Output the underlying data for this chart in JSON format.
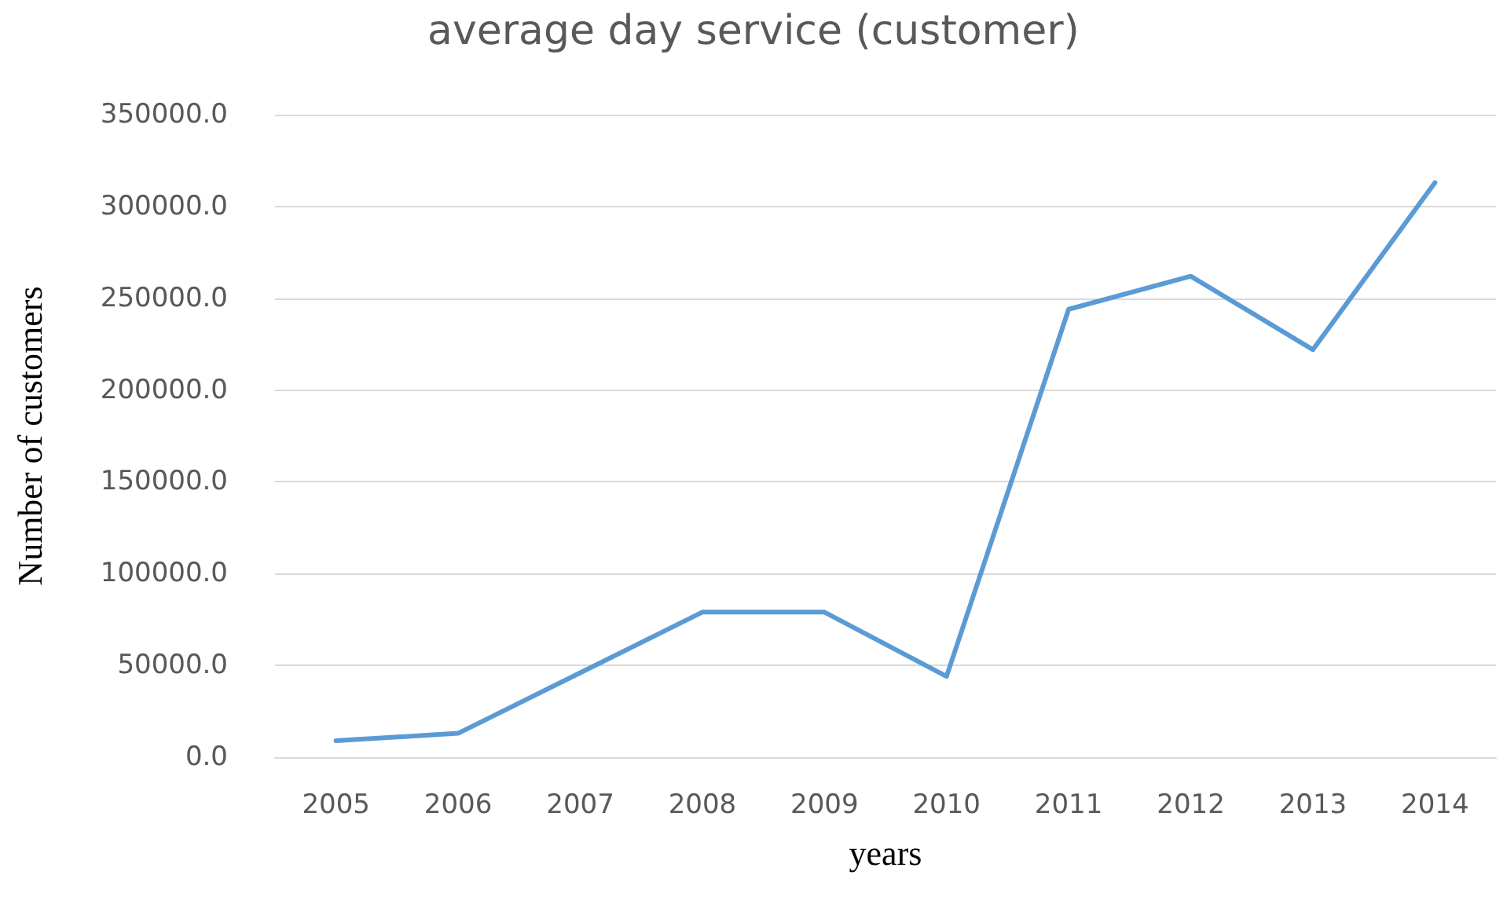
{
  "chart_data": {
    "type": "line",
    "title": "average day service (customer)",
    "xlabel": "years",
    "ylabel": "Number of customers",
    "categories": [
      "2005",
      "2006",
      "2007",
      "2008",
      "2009",
      "2010",
      "2011",
      "2012",
      "2013",
      "2014"
    ],
    "series": [
      {
        "color": "#5b9bd5",
        "values": [
          9000,
          13000,
          46000,
          79000,
          79000,
          44000,
          244000,
          262000,
          222000,
          313000
        ]
      }
    ],
    "ylim": [
      0,
      350000
    ],
    "yticks": [
      {
        "value": 0,
        "label": "0.0"
      },
      {
        "value": 50000,
        "label": "50000.0"
      },
      {
        "value": 100000,
        "label": "100000.0"
      },
      {
        "value": 150000,
        "label": "150000.0"
      },
      {
        "value": 200000,
        "label": "200000.0"
      },
      {
        "value": 250000,
        "label": "250000.0"
      },
      {
        "value": 300000,
        "label": "300000.0"
      },
      {
        "value": 350000,
        "label": "350000.0"
      }
    ],
    "grid": "y",
    "marker": "none",
    "line_style": "solid"
  }
}
